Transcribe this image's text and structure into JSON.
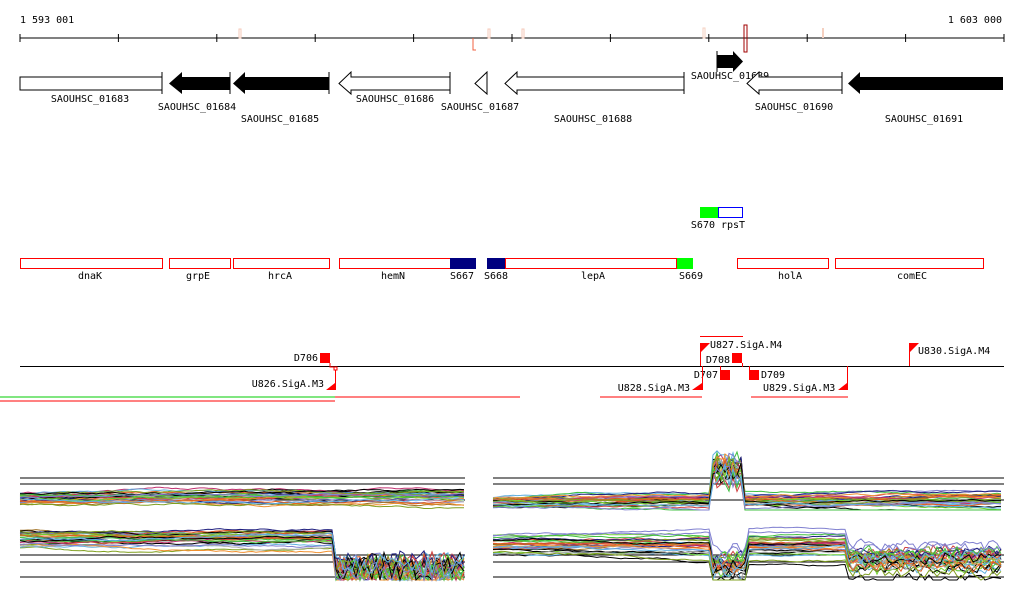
{
  "ruler": {
    "start_label": "1 593 001",
    "end_label": "1 603 000"
  },
  "genes": [
    {
      "name": "SAOUHSC_01683",
      "strand": "+",
      "style": "open"
    },
    {
      "name": "SAOUHSC_01684",
      "strand": "-",
      "style": "filled"
    },
    {
      "name": "SAOUHSC_01685",
      "strand": "-",
      "style": "filled"
    },
    {
      "name": "SAOUHSC_01686",
      "strand": "-",
      "style": "open"
    },
    {
      "name": "SAOUHSC_01687",
      "strand": "-",
      "style": "open"
    },
    {
      "name": "SAOUHSC_01688",
      "strand": "-",
      "style": "open"
    },
    {
      "name": "SAOUHSC_01689",
      "strand": "+",
      "style": "filled"
    },
    {
      "name": "SAOUHSC_01690",
      "strand": "-",
      "style": "open"
    },
    {
      "name": "SAOUHSC_01691",
      "strand": "-",
      "style": "filled"
    }
  ],
  "features": [
    {
      "name": "dnaK"
    },
    {
      "name": "grpE"
    },
    {
      "name": "hrcA"
    },
    {
      "name": "hemN"
    },
    {
      "name": "S667"
    },
    {
      "name": "S668"
    },
    {
      "name": "lepA"
    },
    {
      "name": "S669"
    },
    {
      "name": "holA"
    },
    {
      "name": "comEC"
    },
    {
      "name": "S670"
    },
    {
      "name": "rpsT"
    }
  ],
  "regulatory": {
    "D706": "D706",
    "U826": "U826.SigA.M3",
    "U827": "U827.SigA.M4",
    "D708": "D708",
    "D707": "D707",
    "D709": "D709",
    "U828": "U828.SigA.M3",
    "U829": "U829.SigA.M3",
    "U830": "U830.SigA.M4"
  },
  "colors": {
    "feature_outline": "#ff0000",
    "srna_navy": "#000080",
    "srna_green": "#00ff00",
    "marker_dark": "#a00000"
  }
}
